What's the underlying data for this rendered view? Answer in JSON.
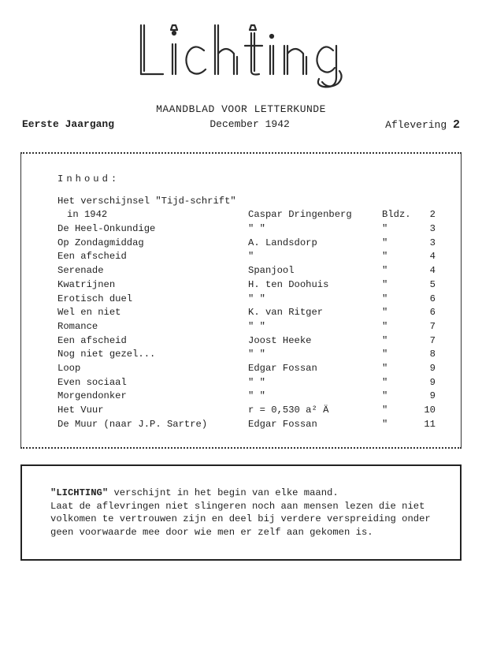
{
  "masthead": {
    "title_text": "Lichting",
    "stroke_color": "#2a2a2a",
    "fill_color": "none"
  },
  "header": {
    "subtitle": "MAANDBLAD VOOR LETTERKUNDE",
    "volume": "Eerste Jaargang",
    "date": "December 1942",
    "issue_label": "Aflevering",
    "issue_number": "2"
  },
  "toc": {
    "heading": "Inhoud:",
    "page_label_first": "Bldz.",
    "ditto": "\"",
    "entries": [
      {
        "title": "Het verschijnsel \"Tijd-schrift\"",
        "title_line2": "in 1942",
        "author": "Caspar Dringenberg",
        "pg": "2"
      },
      {
        "title": "De Heel-Onkundige",
        "author": "\"        \"",
        "pg": "3"
      },
      {
        "title": "Op Zondagmiddag",
        "author": "A. Landsdorp",
        "pg": "3"
      },
      {
        "title": "Een afscheid",
        "author": "\"",
        "pg": "4"
      },
      {
        "title": "Serenade",
        "author": "Spanjool",
        "pg": "4"
      },
      {
        "title": "Kwatrijnen",
        "author": "H. ten Doohuis",
        "pg": "5"
      },
      {
        "title": "Erotisch duel",
        "author": "\"      \"",
        "pg": "6"
      },
      {
        "title": "Wel en niet",
        "author": "K. van Ritger",
        "pg": "6"
      },
      {
        "title": "Romance",
        "author": "\"      \"",
        "pg": "7"
      },
      {
        "title": "Een afscheid",
        "author": "Joost Heeke",
        "pg": "7"
      },
      {
        "title": "Nog niet gezel...",
        "author": "\"      \"",
        "pg": "8"
      },
      {
        "title": "Loop",
        "author": "Edgar Fossan",
        "pg": "9"
      },
      {
        "title": "Even sociaal",
        "author": "\"      \"",
        "pg": "9"
      },
      {
        "title": "Morgendonker",
        "author": "\"      \"",
        "pg": "9"
      },
      {
        "title": "Het Vuur",
        "author": "r = 0,530 a² Ä",
        "pg": "10"
      },
      {
        "title": "De Muur (naar J.P. Sartre)",
        "author": "Edgar Fossan",
        "pg": "11"
      }
    ]
  },
  "notice": {
    "line1_bold": "\"LICHTING\"",
    "line1_rest": " verschijnt in het begin van elke maand.",
    "line2": "Laat de aflevringen niet slingeren noch aan mensen lezen die niet volkomen te vertrouwen zijn en deel bij verdere verspreiding onder geen voorwaarde mee door wie men er zelf aan gekomen is."
  },
  "style": {
    "page_bg": "#ffffff",
    "text_color": "#222222",
    "box_border_color": "#333333",
    "font_family": "Courier New"
  }
}
